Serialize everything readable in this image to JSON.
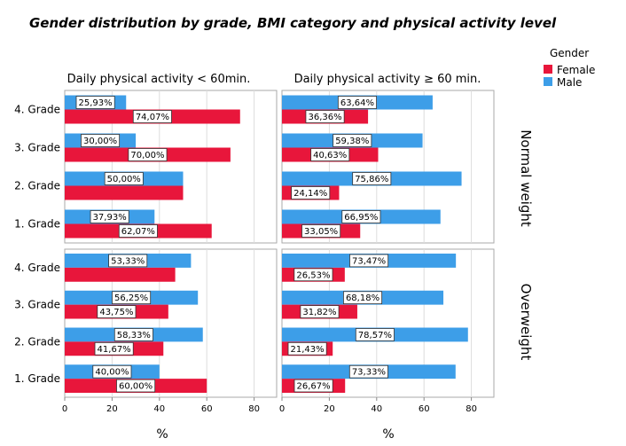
{
  "chart_data": {
    "type": "bar",
    "orientation": "horizontal",
    "title": "Gender distribution by grade, BMI category and physical activity level",
    "columns": [
      "Daily physical activity < 60min.",
      "Daily physical activity ≥ 60 min."
    ],
    "rows": [
      "Normal weight",
      "Overweight"
    ],
    "categories": [
      "4. Grade",
      "3. Grade",
      "2. Grade",
      "1. Grade"
    ],
    "xlabel": "%",
    "xticks": [
      "0",
      "20",
      "40",
      "60",
      "80"
    ],
    "xlim": [
      0,
      90
    ],
    "grid": true,
    "legend": {
      "title": "Gender",
      "position": "top-right",
      "entries": [
        {
          "name": "Female",
          "color": "#e8163b"
        },
        {
          "name": "Male",
          "color": "#3d9ee8"
        }
      ]
    },
    "panels": [
      {
        "row": "Normal weight",
        "column": "Daily physical activity < 60min.",
        "male": [
          25.93,
          30.0,
          50.0,
          37.93
        ],
        "female": [
          74.07,
          70.0,
          50.0,
          62.07
        ],
        "male_labels": [
          "25,93%",
          "30,00%",
          "50,00%",
          "37,93%"
        ],
        "female_labels": [
          "74,07%",
          "70,00%",
          "",
          "62,07%"
        ]
      },
      {
        "row": "Normal weight",
        "column": "Daily physical activity ≥ 60 min.",
        "male": [
          63.64,
          59.38,
          75.86,
          66.95
        ],
        "female": [
          36.36,
          40.63,
          24.14,
          33.05
        ],
        "male_labels": [
          "63,64%",
          "59,38%",
          "75,86%",
          "66,95%"
        ],
        "female_labels": [
          "36,36%",
          "40,63%",
          "24,14%",
          "33,05%"
        ]
      },
      {
        "row": "Overweight",
        "column": "Daily physical activity < 60min.",
        "male": [
          53.33,
          56.25,
          58.33,
          40.0
        ],
        "female": [
          46.67,
          43.75,
          41.67,
          60.0
        ],
        "male_labels": [
          "53,33%",
          "56,25%",
          "58,33%",
          "40,00%"
        ],
        "female_labels": [
          "",
          "43,75%",
          "41,67%",
          "60,00%"
        ]
      },
      {
        "row": "Overweight",
        "column": "Daily physical activity ≥ 60 min.",
        "male": [
          73.47,
          68.18,
          78.57,
          73.33
        ],
        "female": [
          26.53,
          31.82,
          21.43,
          26.67
        ],
        "male_labels": [
          "73,47%",
          "68,18%",
          "78,57%",
          "73,33%"
        ],
        "female_labels": [
          "26,53%",
          "31,82%",
          "21,43%",
          "26,67%"
        ]
      }
    ]
  }
}
